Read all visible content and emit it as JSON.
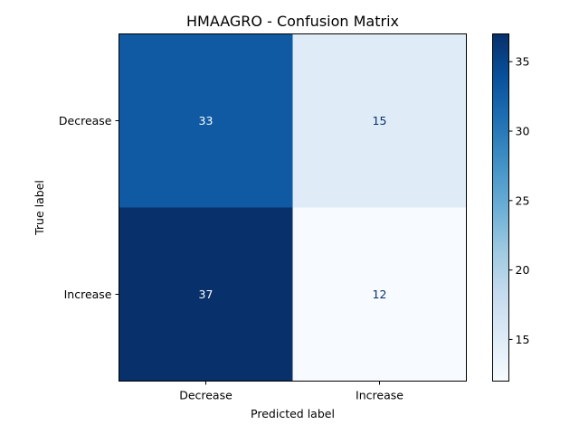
{
  "chart_data": {
    "type": "heatmap",
    "title": "HMAAGRO - Confusion Matrix",
    "xlabel": "Predicted label",
    "ylabel": "True label",
    "x_categories": [
      "Decrease",
      "Increase"
    ],
    "y_categories": [
      "Decrease",
      "Increase"
    ],
    "values": [
      [
        33,
        15
      ],
      [
        37,
        12
      ]
    ],
    "colormap": "Blues",
    "colorbar": {
      "min": 12,
      "max": 37,
      "ticks": [
        15,
        20,
        25,
        30,
        35
      ]
    },
    "text_color_dark_bg": "#ffffff",
    "text_color_light_bg": "#08306b"
  }
}
